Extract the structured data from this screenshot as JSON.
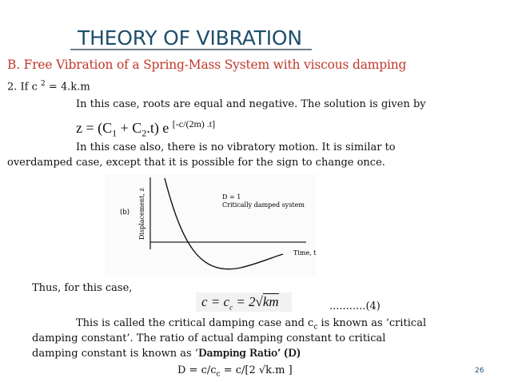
{
  "title": "THEORY OF VIBRATION",
  "subtitle": "B. Free Vibration of a Spring-Mass System with viscous damping",
  "condition": {
    "prefix": "2. If c",
    "exp": "2",
    "suffix": "= 4.k.m"
  },
  "para1": "In this case, roots are equal and negative. The solution is given by",
  "equation": {
    "a": "z = (C",
    "sub1": "1",
    "b": " + C",
    "sub2": "2",
    "c": ".t) e ",
    "exp": "[-c/(2m) .t]"
  },
  "para2": {
    "line1": "In this case also, there is no vibratory motion. It is similar to",
    "line2": "overdamped case, except that it is possible for the sign to change once."
  },
  "graph": {
    "panel_label": "(b)",
    "y_label": "Displacement, z",
    "x_label": "Time, t",
    "legend_line1": "D = 1",
    "legend_line2": "Critically damped system"
  },
  "thus": "Thus, for this case,",
  "formula": {
    "lhs": "c = c",
    "sub": "c",
    "rhs": " = 2",
    "root": "km"
  },
  "ref": "...........(4)",
  "para3": {
    "line1a": "This is called the critical damping case and c",
    "line1sub": "c",
    "line1b": " is known as ‘critical",
    "line2": "damping constant’. The ratio of actual damping constant to critical",
    "line3a": "damping constant is known as ‘",
    "line3b": "Damping Ratio’ (D)"
  },
  "dr": {
    "a": "D = c/c",
    "sub": "c",
    "b": " = c/[2 √k.m ]"
  },
  "page_number": "26"
}
